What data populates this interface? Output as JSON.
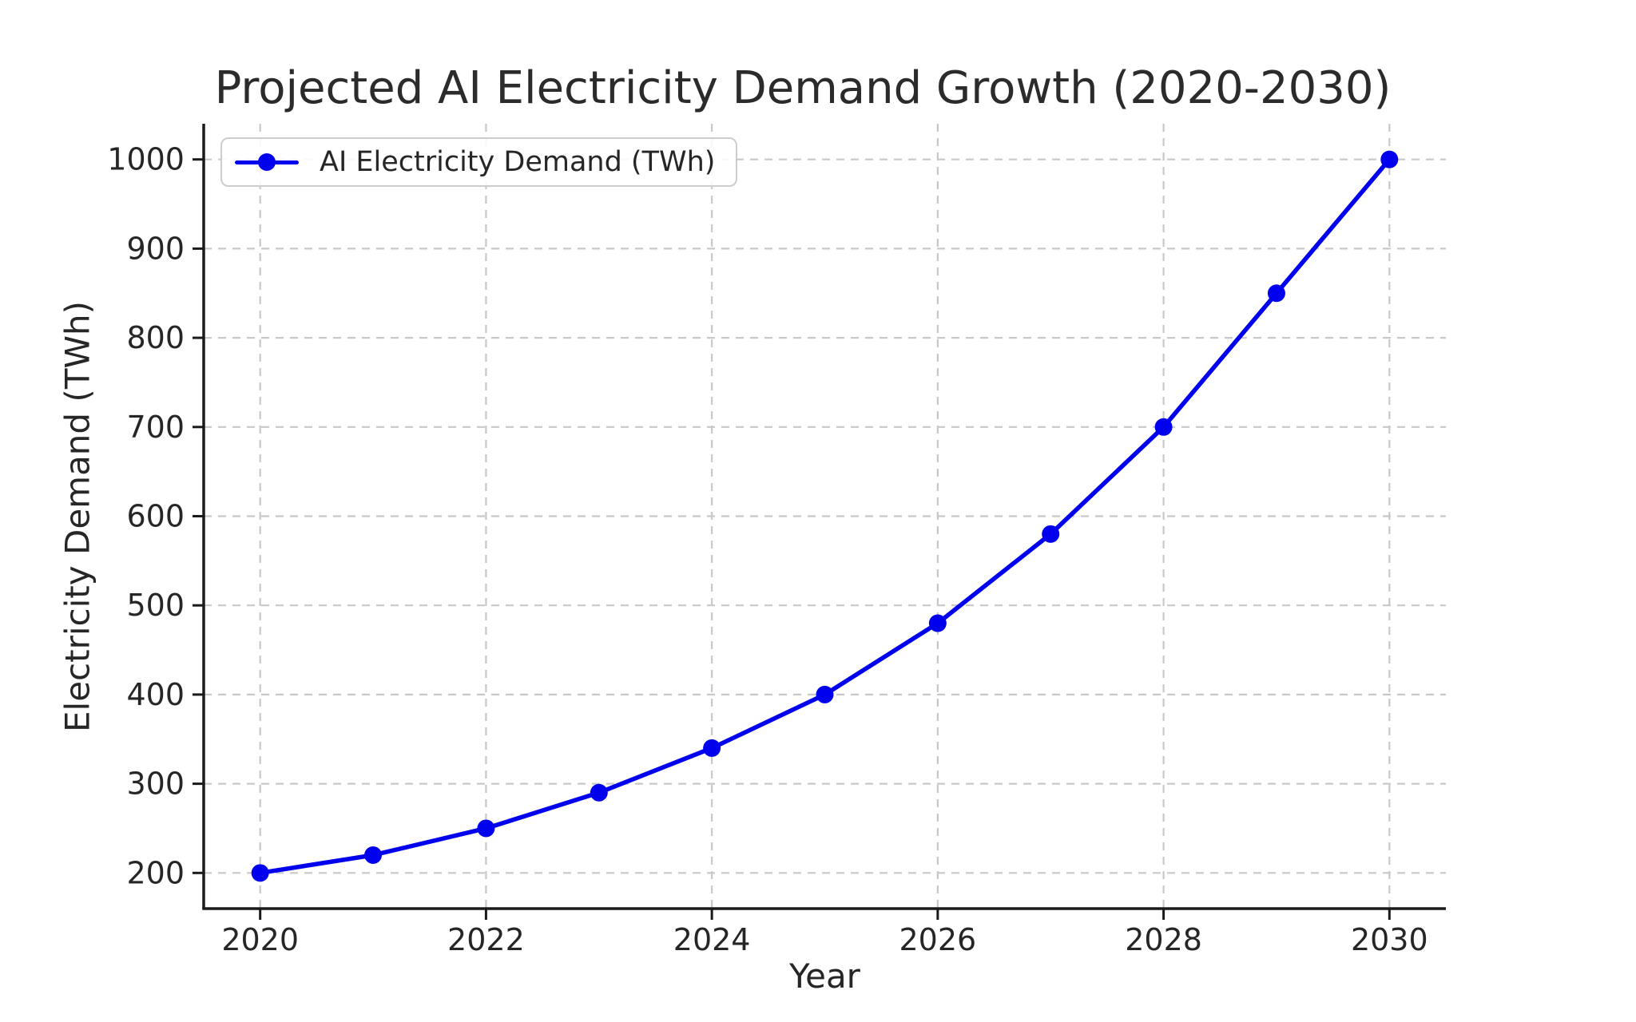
{
  "chart_data": {
    "type": "line",
    "title": "Projected AI Electricity Demand Growth (2020-2030)",
    "xlabel": "Year",
    "ylabel": "Electricity Demand (TWh)",
    "x": [
      2020,
      2021,
      2022,
      2023,
      2024,
      2025,
      2026,
      2027,
      2028,
      2029,
      2030
    ],
    "series": [
      {
        "name": "AI Electricity Demand (TWh)",
        "values": [
          200,
          220,
          250,
          290,
          340,
          400,
          480,
          580,
          700,
          850,
          1000
        ],
        "color": "#0000ee",
        "marker": "circle",
        "linestyle": "solid"
      }
    ],
    "xticks": [
      2020,
      2022,
      2024,
      2026,
      2028,
      2030
    ],
    "yticks": [
      200,
      300,
      400,
      500,
      600,
      700,
      800,
      900,
      1000
    ],
    "xlim": [
      2019.5,
      2030.5
    ],
    "ylim": [
      160,
      1040
    ],
    "grid": true,
    "grid_style": "dashed",
    "legend_position": "upper left",
    "colors": {
      "line": "#0000ee",
      "grid": "#c8c8c8",
      "axis": "#1a1a1a",
      "text": "#262626",
      "legend_border": "#cccccc",
      "background": "#ffffff"
    }
  }
}
